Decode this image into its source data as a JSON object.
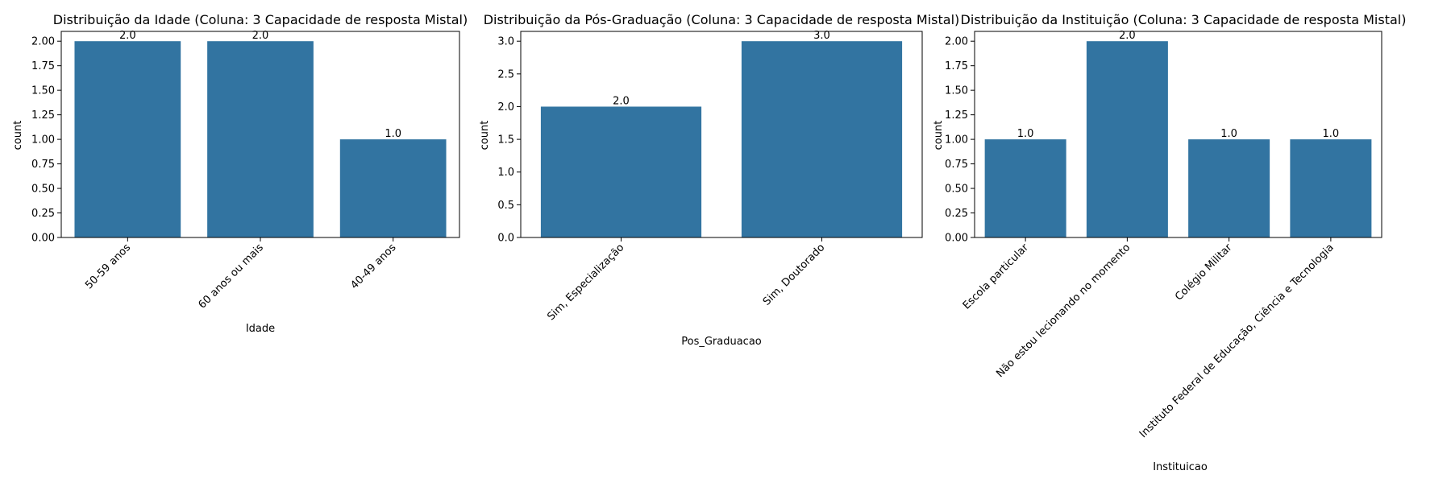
{
  "chart_data": [
    {
      "type": "bar",
      "title": "Distribuição da Idade (Coluna: 3 Capacidade de resposta Mistal)",
      "xlabel": "Idade",
      "ylabel": "count",
      "categories": [
        "50-59 anos",
        "60 anos ou mais",
        "40-49 anos"
      ],
      "values": [
        2,
        2,
        1
      ],
      "data_labels": [
        "2.0",
        "2.0",
        "1.0"
      ],
      "ylim": [
        0,
        2.1
      ],
      "yticks": [
        0,
        0.25,
        0.5,
        0.75,
        1.0,
        1.25,
        1.5,
        1.75,
        2.0
      ],
      "ytick_labels": [
        "0.00",
        "0.25",
        "0.50",
        "0.75",
        "1.00",
        "1.25",
        "1.50",
        "1.75",
        "2.00"
      ],
      "bar_color": "#3274a1",
      "grid": false
    },
    {
      "type": "bar",
      "title": "Distribuição da Pós-Graduação (Coluna: 3 Capacidade de resposta Mistal)",
      "xlabel": "Pos_Graduacao",
      "ylabel": "count",
      "categories": [
        "Sim, Especialização",
        "Sim, Doutorado"
      ],
      "values": [
        2,
        3
      ],
      "data_labels": [
        "2.0",
        "3.0"
      ],
      "ylim": [
        0,
        3.15
      ],
      "yticks": [
        0,
        0.5,
        1.0,
        1.5,
        2.0,
        2.5,
        3.0
      ],
      "ytick_labels": [
        "0.0",
        "0.5",
        "1.0",
        "1.5",
        "2.0",
        "2.5",
        "3.0"
      ],
      "bar_color": "#3274a1",
      "grid": false
    },
    {
      "type": "bar",
      "title": "Distribuição da Instituição (Coluna: 3 Capacidade de resposta Mistal)",
      "xlabel": "Instituicao",
      "ylabel": "count",
      "categories": [
        "Escola particular",
        "Não estou lecionando no momento",
        "Colégio Militar",
        "Instituto Federal de Educação, Ciência e Tecnologia"
      ],
      "values": [
        1,
        2,
        1,
        1
      ],
      "data_labels": [
        "1.0",
        "2.0",
        "1.0",
        "1.0"
      ],
      "ylim": [
        0,
        2.1
      ],
      "yticks": [
        0,
        0.25,
        0.5,
        0.75,
        1.0,
        1.25,
        1.5,
        1.75,
        2.0
      ],
      "ytick_labels": [
        "0.00",
        "0.25",
        "0.50",
        "0.75",
        "1.00",
        "1.25",
        "1.50",
        "1.75",
        "2.00"
      ],
      "bar_color": "#3274a1",
      "grid": false
    }
  ]
}
